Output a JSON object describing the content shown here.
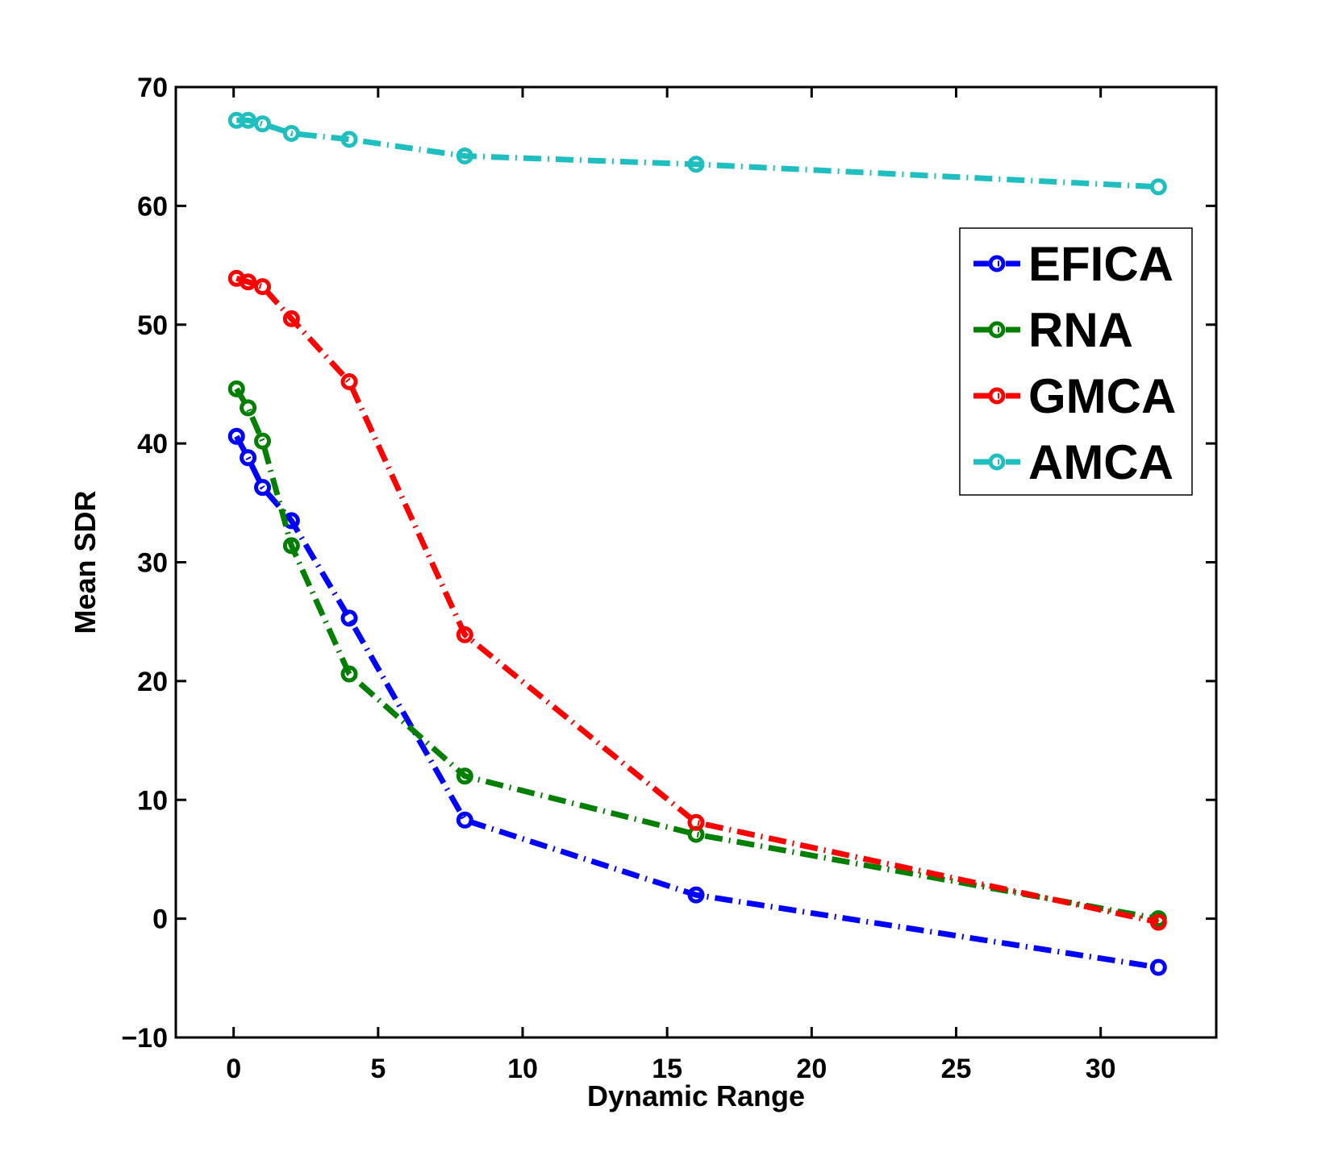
{
  "chart_data": {
    "type": "line",
    "xlabel": "Dynamic Range",
    "ylabel": "Mean SDR",
    "xlim": [
      -2,
      34
    ],
    "ylim": [
      -10,
      70
    ],
    "xticks": [
      0,
      5,
      10,
      15,
      20,
      25,
      30
    ],
    "yticks": [
      -10,
      0,
      10,
      20,
      30,
      40,
      50,
      60,
      70
    ],
    "xtick_labels": [
      "0",
      "5",
      "10",
      "15",
      "20",
      "25",
      "30"
    ],
    "ytick_labels": [
      "−10",
      "0",
      "10",
      "20",
      "30",
      "40",
      "50",
      "60",
      "70"
    ],
    "grid": false,
    "legend_position": "top-right",
    "x": [
      0.1,
      0.5,
      1,
      2,
      4,
      8,
      16,
      32
    ],
    "series": [
      {
        "name": "EFICA",
        "color": "#0000ff",
        "values": [
          40.6,
          38.8,
          36.3,
          33.5,
          25.3,
          8.3,
          2.0,
          -4.1
        ]
      },
      {
        "name": "RNA",
        "color": "#007f00",
        "values": [
          44.6,
          43.0,
          40.2,
          31.4,
          20.6,
          12.0,
          7.1,
          0.0
        ]
      },
      {
        "name": "GMCA",
        "color": "#ff0000",
        "values": [
          53.9,
          53.6,
          53.2,
          50.5,
          45.2,
          23.9,
          8.1,
          -0.3
        ]
      },
      {
        "name": "AMCA",
        "color": "#1fbfbf",
        "values": [
          67.2,
          67.2,
          66.9,
          66.1,
          65.6,
          64.2,
          63.5,
          61.6
        ]
      }
    ]
  }
}
